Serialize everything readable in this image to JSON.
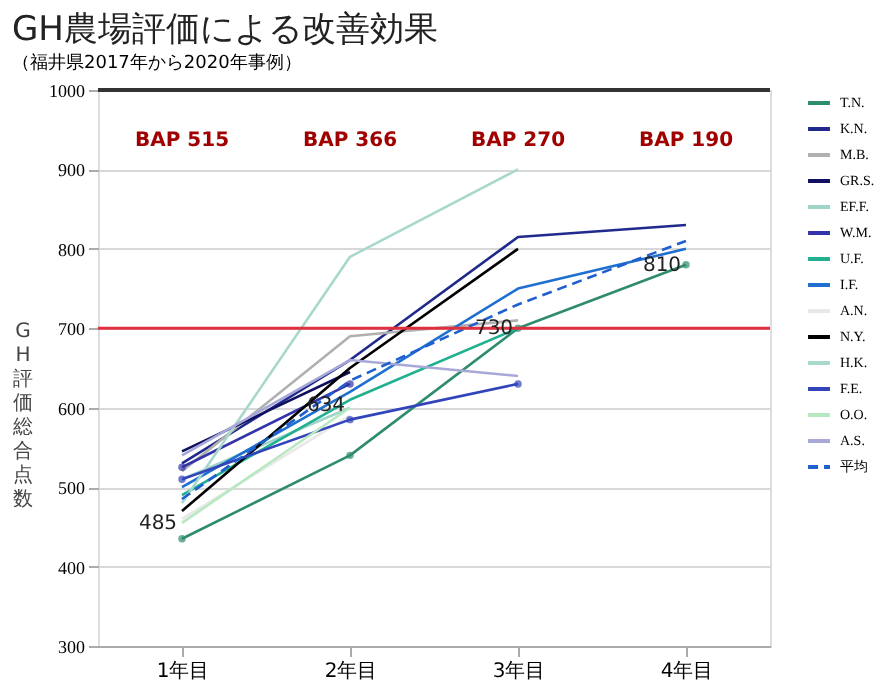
{
  "chart_data": {
    "type": "line",
    "title": "GH農場評価による改善効果",
    "subtitle": "（福井県2017年から2020年事例）",
    "ylabel": "GH評価総合点数",
    "categories": [
      "1年目",
      "2年目",
      "3年目",
      "4年目"
    ],
    "ylim": [
      300,
      1000
    ],
    "yticks": [
      300,
      400,
      500,
      600,
      700,
      800,
      900,
      1000
    ],
    "grid": "y",
    "legend": "right",
    "series": [
      {
        "name": "T.N.",
        "color": "#2e8b6e",
        "marker": "circle",
        "values": [
          435,
          540,
          700,
          780
        ]
      },
      {
        "name": "K.N.",
        "color": "#1f2a8c",
        "values": [
          530,
          660,
          815,
          830
        ]
      },
      {
        "name": "M.B.",
        "color": "#b0b0b0",
        "values": [
          520,
          690,
          710,
          null
        ]
      },
      {
        "name": "GR.S.",
        "color": "#101060",
        "values": [
          545,
          645,
          null,
          null
        ]
      },
      {
        "name": "EF.F.",
        "color": "#9fd4c8",
        "values": [
          510,
          600,
          null,
          null
        ]
      },
      {
        "name": "W.M.",
        "color": "#3333aa",
        "marker": "circle",
        "values": [
          525,
          630,
          null,
          null
        ]
      },
      {
        "name": "U.F.",
        "color": "#20b090",
        "values": [
          490,
          610,
          700,
          null
        ]
      },
      {
        "name": "I.F.",
        "color": "#1f6fd0",
        "values": [
          500,
          620,
          750,
          800
        ]
      },
      {
        "name": "A.N.",
        "color": "#e8e8e8",
        "values": [
          460,
          590,
          null,
          null
        ]
      },
      {
        "name": "N.Y.",
        "color": "#000000",
        "values": [
          470,
          650,
          800,
          null
        ]
      },
      {
        "name": "H.K.",
        "color": "#a8d8cc",
        "values": [
          480,
          790,
          900,
          null
        ]
      },
      {
        "name": "F.E.",
        "color": "#3344bb",
        "marker": "circle",
        "values": [
          510,
          585,
          630,
          null
        ]
      },
      {
        "name": "O.O.",
        "color": "#b8e8c0",
        "values": [
          455,
          600,
          null,
          null
        ]
      },
      {
        "name": "A.S.",
        "color": "#a8a8d8",
        "values": [
          540,
          660,
          640,
          null
        ]
      },
      {
        "name": "平均",
        "color": "#1f5fd0",
        "line_style": "dashed",
        "values": [
          485,
          634,
          730,
          810
        ]
      }
    ],
    "ref_lines": [
      {
        "axis": "y",
        "value": 1000,
        "color": "#333333"
      },
      {
        "axis": "y",
        "value": 700,
        "color": "#e03040"
      }
    ],
    "annotations": [
      {
        "text": "485",
        "x": "1年目",
        "y": 485
      },
      {
        "text": "634",
        "x": "2年目",
        "y": 634
      },
      {
        "text": "730",
        "x": "3年目",
        "y": 730
      },
      {
        "text": "810",
        "x": "4年目",
        "y": 810
      },
      "BAP 515",
      "BAP 366",
      "BAP 270",
      "BAP 190"
    ]
  }
}
